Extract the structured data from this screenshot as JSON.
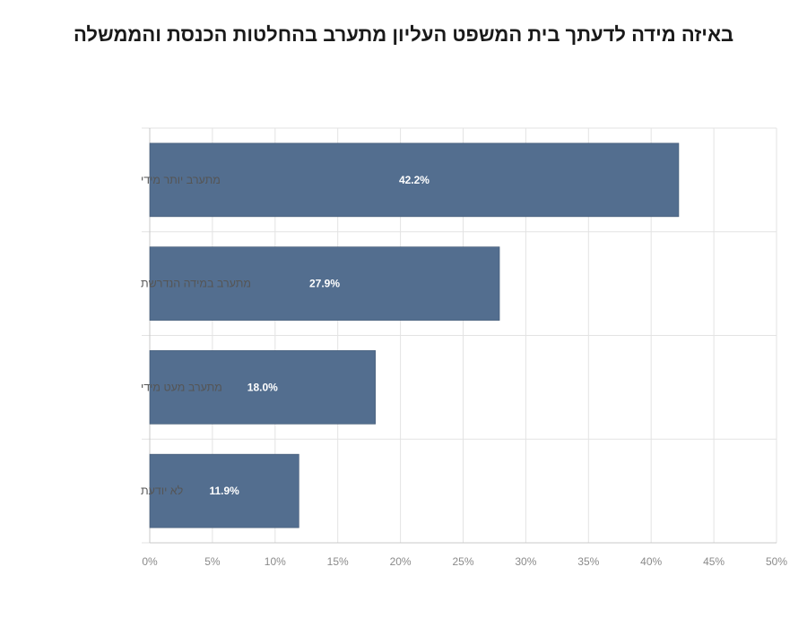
{
  "chart_data": {
    "type": "bar",
    "orientation": "horizontal",
    "title": "באיזה מידה לדעתך בית המשפט העליון מתערב בהחלטות הכנסת והממשלה",
    "categories": [
      "מתערב יותר מידי",
      "מתערב במידה הנדרשת",
      "מתערב מעט מידי",
      "לא יודעת"
    ],
    "values": [
      42.2,
      27.9,
      18.0,
      11.9
    ],
    "value_labels": [
      "42.2%",
      "27.9%",
      "18.0%",
      "11.9%"
    ],
    "xlim": [
      0,
      50
    ],
    "xticks": [
      0,
      5,
      10,
      15,
      20,
      25,
      30,
      35,
      40,
      45,
      50
    ],
    "xtick_labels": [
      "0%",
      "5%",
      "10%",
      "15%",
      "20%",
      "25%",
      "30%",
      "35%",
      "40%",
      "45%",
      "50%"
    ],
    "xlabel": "",
    "ylabel": "",
    "grid": true,
    "bar_color": "#536e8f"
  }
}
